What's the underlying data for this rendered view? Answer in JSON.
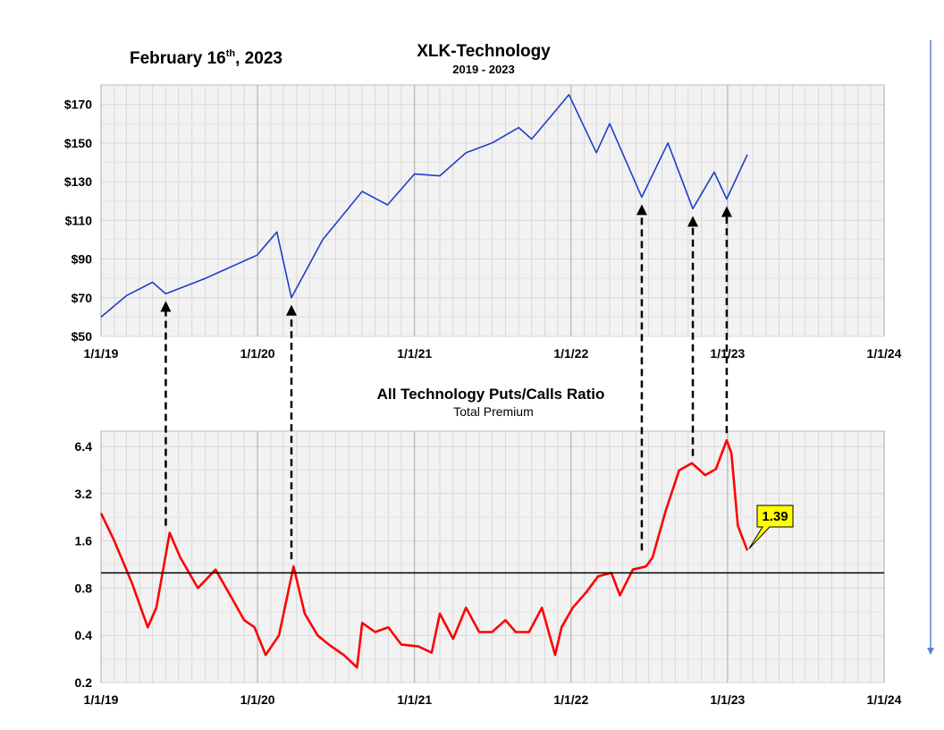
{
  "date_label": {
    "prefix": "February 16",
    "suffix": "th",
    "year": ", 2023"
  },
  "colors": {
    "price_line": "#1f3fc7",
    "ratio_line": "#ff0000",
    "plot_bg": "#f2f2f2",
    "grid": "#d8d8d8",
    "year_grid": "#a8a8a8",
    "callout_fill": "#ffff00",
    "side_arrow": "#5b7fd6"
  },
  "chart_data": [
    {
      "type": "line",
      "title": "XLK-Technology",
      "subtitle": "2019 - 2023",
      "xlabel": "",
      "ylabel": "",
      "x_ticks": [
        "1/1/19",
        "1/1/20",
        "1/1/21",
        "1/1/22",
        "1/1/23",
        "1/1/24"
      ],
      "y_ticks": [
        "$50",
        "$70",
        "$90",
        "$110",
        "$130",
        "$150",
        "$170"
      ],
      "ylim": [
        50,
        180
      ],
      "grid": true,
      "series": [
        {
          "x": [
            "2019-01-01",
            "2019-03-01",
            "2019-05-01",
            "2019-06-01",
            "2019-09-01",
            "2019-12-31",
            "2020-02-15",
            "2020-03-20",
            "2020-06-01",
            "2020-09-01",
            "2020-10-30",
            "2021-01-01",
            "2021-03-01",
            "2021-05-01",
            "2021-07-01",
            "2021-09-01",
            "2021-10-01",
            "2021-12-01",
            "2021-12-27",
            "2022-03-01",
            "2022-04-01",
            "2022-06-15",
            "2022-08-15",
            "2022-10-12",
            "2022-12-01",
            "2022-12-30",
            "2023-02-16"
          ],
          "values": [
            60,
            71,
            78,
            72,
            80,
            92,
            104,
            70,
            100,
            125,
            118,
            134,
            133,
            145,
            150,
            158,
            152,
            168,
            175,
            145,
            160,
            122,
            150,
            116,
            135,
            121,
            144
          ]
        }
      ]
    },
    {
      "type": "line",
      "title": "All Technology Puts/Calls Ratio",
      "subtitle": "Total Premium",
      "xlabel": "",
      "ylabel": "",
      "scale": "log",
      "x_ticks": [
        "1/1/19",
        "1/1/20",
        "1/1/21",
        "1/1/22",
        "1/1/23",
        "1/1/24"
      ],
      "y_ticks": [
        "0.2",
        "0.4",
        "0.8",
        "1.6",
        "3.2",
        "6.4"
      ],
      "ylim": [
        0.2,
        8
      ],
      "grid": true,
      "reference_line": 1.0,
      "callout": "1.39",
      "series": [
        {
          "x": [
            "2019-01-01",
            "2019-02-01",
            "2019-03-15",
            "2019-04-20",
            "2019-05-10",
            "2019-06-10",
            "2019-07-05",
            "2019-08-15",
            "2019-09-25",
            "2019-11-01",
            "2019-12-01",
            "2019-12-25",
            "2020-01-20",
            "2020-02-20",
            "2020-03-25",
            "2020-04-20",
            "2020-05-20",
            "2020-06-15",
            "2020-07-20",
            "2020-08-20",
            "2020-09-01",
            "2020-10-01",
            "2020-11-01",
            "2020-12-01",
            "2021-01-10",
            "2021-02-10",
            "2021-03-01",
            "2021-04-01",
            "2021-05-01",
            "2021-06-01",
            "2021-07-01",
            "2021-08-01",
            "2021-08-25",
            "2021-09-25",
            "2021-10-25",
            "2021-11-25",
            "2021-12-10",
            "2022-01-05",
            "2022-02-05",
            "2022-03-05",
            "2022-04-05",
            "2022-04-25",
            "2022-05-25",
            "2022-06-25",
            "2022-07-10",
            "2022-08-10",
            "2022-09-10",
            "2022-10-10",
            "2022-11-10",
            "2022-12-05",
            "2022-12-30",
            "2023-01-10",
            "2023-01-25",
            "2023-02-16"
          ],
          "values": [
            2.4,
            1.6,
            0.85,
            0.45,
            0.6,
            1.8,
            1.25,
            0.8,
            1.05,
            0.7,
            0.5,
            0.45,
            0.3,
            0.4,
            1.1,
            0.55,
            0.4,
            0.35,
            0.3,
            0.25,
            0.48,
            0.42,
            0.45,
            0.35,
            0.34,
            0.31,
            0.55,
            0.38,
            0.6,
            0.42,
            0.42,
            0.5,
            0.42,
            0.42,
            0.6,
            0.3,
            0.45,
            0.6,
            0.75,
            0.95,
            1.0,
            0.72,
            1.05,
            1.1,
            1.25,
            2.5,
            4.5,
            5.0,
            4.2,
            4.6,
            7.0,
            5.8,
            2.0,
            1.39
          ]
        }
      ]
    }
  ]
}
